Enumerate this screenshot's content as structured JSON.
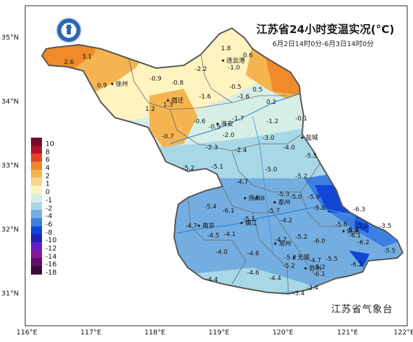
{
  "title": "江苏省24小时变温实况(°C)",
  "subtitle": "6月2日14时0分-6月3日14时0分",
  "agency": "江苏省气象台",
  "logo": {
    "name": "江苏省气象台",
    "icon": "weather-bureau-logo-icon"
  },
  "axes": {
    "lon_labels": [
      "116°E",
      "117°E",
      "118°E",
      "119°E",
      "120°E",
      "121°E",
      "122°E"
    ],
    "lat_labels": [
      "35°N",
      "34°N",
      "33°N",
      "32°N",
      "31°N"
    ]
  },
  "legend": [
    {
      "label": "10",
      "color": "#7a0a2a"
    },
    {
      "label": "8",
      "color": "#b3102e"
    },
    {
      "label": "6",
      "color": "#e8412a"
    },
    {
      "label": "4",
      "color": "#f08a2a"
    },
    {
      "label": "2",
      "color": "#f4b450"
    },
    {
      "label": "1",
      "color": "#f8d68a"
    },
    {
      "label": "0",
      "color": "#fff3c0"
    },
    {
      "label": "-1",
      "color": "#d6efe6"
    },
    {
      "label": "-2",
      "color": "#a8d8e6"
    },
    {
      "label": "-4",
      "color": "#74aee0"
    },
    {
      "label": "-6",
      "color": "#3c7fe0"
    },
    {
      "label": "-8",
      "color": "#1246d6"
    },
    {
      "label": "-10",
      "color": "#1a23b4"
    },
    {
      "label": "-12",
      "color": "#6a1bc8"
    },
    {
      "label": "-14",
      "color": "#8a15a0"
    },
    {
      "label": "-16",
      "color": "#5a0f6a"
    },
    {
      "label": "-18",
      "color": "#3a0a3a"
    }
  ],
  "cities": [
    {
      "name": "连云港"
    },
    {
      "name": "徐州"
    },
    {
      "name": "宿迁"
    },
    {
      "name": "淮安"
    },
    {
      "name": "盐城"
    },
    {
      "name": "扬州"
    },
    {
      "name": "泰州"
    },
    {
      "name": "南京"
    },
    {
      "name": "镇江"
    },
    {
      "name": "南通"
    },
    {
      "name": "常州"
    },
    {
      "name": "无锡"
    },
    {
      "name": "苏州"
    }
  ],
  "values": [
    "1.8",
    "0.6",
    "-1.0",
    "3.1",
    "2.6",
    "-2.2",
    "0.9",
    "-0.9",
    "-0.8",
    "-0.5",
    "0.5",
    "-1.6",
    "-1.6",
    "0.2",
    "1.3",
    "1.2",
    "-0.6",
    "-1.7",
    "-0.9",
    "-1.2",
    "-0.1",
    "-0.7",
    "-2.0",
    "-3.0",
    "-2.3",
    "-2.4",
    "-4.0",
    "-5.5",
    "-5.2",
    "-5.1",
    "-5.0",
    "-4.7",
    "-5.2",
    "-4.8",
    "-5.0",
    "-5.3",
    "-5.9",
    "-5.4",
    "-6.1",
    "-5.8",
    "-6.3",
    "-5.7",
    "-5.1",
    "-5.1",
    "-4.2",
    "-4.7",
    "-4.5",
    "-4.1",
    "-4.7",
    "-5.2",
    "-5.6",
    "-5.2",
    "-3.5",
    "-6.0",
    "-6.1",
    "-6.2",
    "-5.5",
    "-4.0",
    "-4.6",
    "-5.2",
    "-5.5",
    "-4.7",
    "-6.2",
    "-5.2",
    "-4.6",
    "-4.4",
    "-5.2",
    "-6.1",
    "-4.4",
    "-2.4",
    "-3.4"
  ]
}
